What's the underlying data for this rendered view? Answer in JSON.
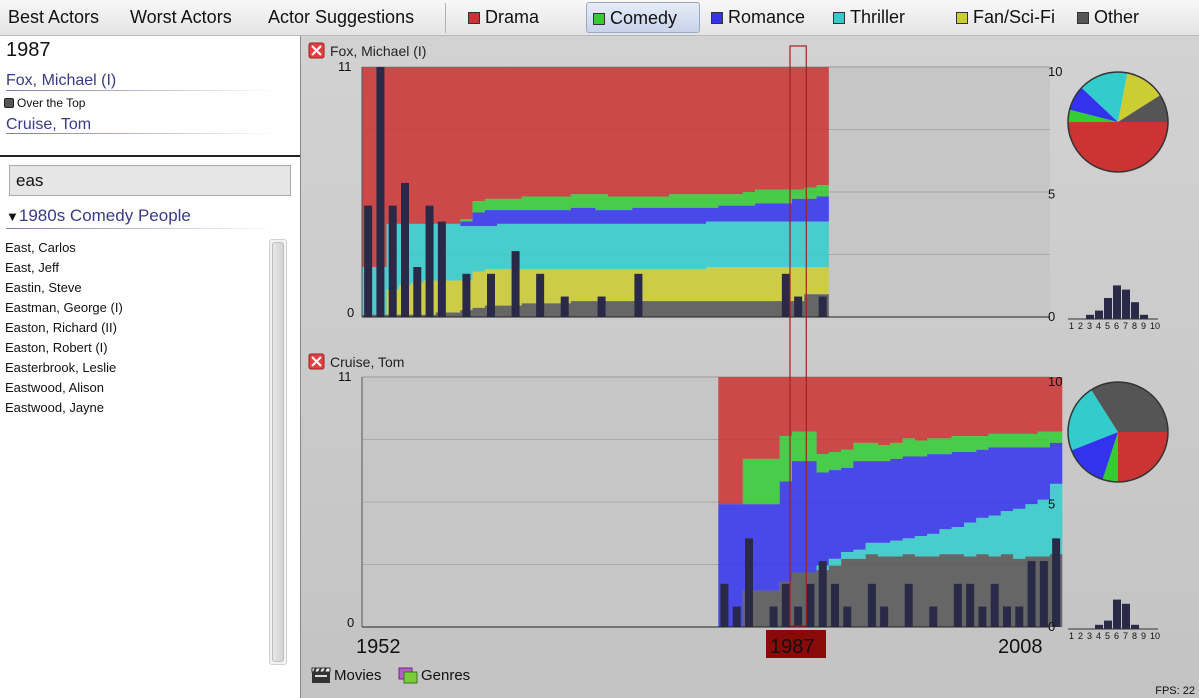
{
  "nav": {
    "tabs": [
      {
        "label": "Best Actors"
      },
      {
        "label": "Worst Actors"
      },
      {
        "label": "Actor Suggestions"
      }
    ]
  },
  "genres": [
    {
      "label": "Drama",
      "color": "#cc3333"
    },
    {
      "label": "Comedy",
      "color": "#33cc33",
      "active": true
    },
    {
      "label": "Romance",
      "color": "#3333ee"
    },
    {
      "label": "Thriller",
      "color": "#33cccc"
    },
    {
      "label": "Fan/Sci-Fi",
      "color": "#cccc33"
    },
    {
      "label": "Other",
      "color": "#555555"
    }
  ],
  "sidebar": {
    "year": "1987",
    "selected_actors": [
      {
        "name": "Fox, Michael (I)"
      },
      {
        "name": "Cruise, Tom"
      }
    ],
    "movie": "Over the Top",
    "search": {
      "value": "eas"
    },
    "group": {
      "label": "1980s Comedy People",
      "expander": "▼"
    },
    "people": [
      "East, Carlos",
      "East, Jeff",
      "Eastin, Steve",
      "Eastman, George (I)",
      "Easton, Richard (II)",
      "Easton, Robert (I)",
      "Easterbrook, Leslie",
      "Eastwood, Alison",
      "Eastwood, Jayne"
    ]
  },
  "timeline": {
    "start_label": "1952",
    "end_label": "2008",
    "selected_label": "1987"
  },
  "bottom": {
    "movies_label": "Movies",
    "genres_label": "Genres",
    "fps": "FPS: 22"
  },
  "chart_data": [
    {
      "type": "area",
      "title": "Fox, Michael (I)",
      "note": "stacked genre share over career, with per-year rating bars; 1 unit = 1 rating point",
      "ylim": [
        0,
        11
      ],
      "right_ticks": [
        "10",
        "5",
        "0"
      ],
      "left_ticks": [
        "11",
        "0"
      ],
      "x_start_year": 1952,
      "x_end_year": 2008,
      "stack_order": [
        "Other",
        "Fan/Sci-Fi",
        "Thriller",
        "Romance",
        "Comedy",
        "Drama"
      ],
      "stack_years": [
        1952,
        1953,
        1954,
        1955,
        1956,
        1957,
        1958,
        1959,
        1960,
        1961,
        1962,
        1963,
        1964,
        1965,
        1966,
        1967,
        1968,
        1969,
        1970,
        1971,
        1972,
        1973,
        1974,
        1975,
        1976,
        1977,
        1978,
        1979,
        1980,
        1981,
        1982,
        1983,
        1984,
        1985,
        1986,
        1987,
        1988,
        1989
      ],
      "stack_boundaries": {
        "Other": [
          0.1,
          0.1,
          0.1,
          0.1,
          0.1,
          0.1,
          0.2,
          0.2,
          0.3,
          0.4,
          0.5,
          0.5,
          0.5,
          0.6,
          0.6,
          0.6,
          0.6,
          0.7,
          0.7,
          0.7,
          0.7,
          0.7,
          0.7,
          0.7,
          0.7,
          0.7,
          0.7,
          0.7,
          0.7,
          0.7,
          0.7,
          0.7,
          0.7,
          0.7,
          0.7,
          0.7,
          1.0,
          1.0
        ],
        "Fan/Sci-Fi": [
          0.1,
          0.1,
          1.2,
          1.4,
          1.5,
          1.6,
          1.6,
          1.6,
          1.6,
          2.0,
          2.1,
          2.1,
          2.1,
          2.1,
          2.1,
          2.1,
          2.1,
          2.1,
          2.1,
          2.1,
          2.1,
          2.1,
          2.1,
          2.1,
          2.1,
          2.1,
          2.1,
          2.1,
          2.2,
          2.2,
          2.2,
          2.2,
          2.2,
          2.2,
          2.2,
          2.2,
          2.2,
          2.2
        ],
        "Thriller": [
          2.2,
          2.2,
          4.1,
          4.1,
          4.1,
          4.1,
          4.1,
          4.1,
          4.0,
          4.0,
          4.0,
          4.1,
          4.1,
          4.1,
          4.1,
          4.1,
          4.1,
          4.1,
          4.1,
          4.1,
          4.1,
          4.1,
          4.1,
          4.1,
          4.1,
          4.1,
          4.1,
          4.1,
          4.2,
          4.2,
          4.2,
          4.2,
          4.2,
          4.2,
          4.2,
          4.2,
          4.2,
          4.2
        ],
        "Romance": [
          2.2,
          2.2,
          4.1,
          4.1,
          4.1,
          4.1,
          4.1,
          4.1,
          4.2,
          4.6,
          4.7,
          4.7,
          4.7,
          4.7,
          4.7,
          4.7,
          4.7,
          4.8,
          4.8,
          4.7,
          4.7,
          4.7,
          4.8,
          4.8,
          4.8,
          4.8,
          4.8,
          4.8,
          4.8,
          4.9,
          4.9,
          4.9,
          5.0,
          5.0,
          5.0,
          5.2,
          5.2,
          5.3
        ],
        "Comedy": [
          2.2,
          2.2,
          4.1,
          4.1,
          4.1,
          4.1,
          4.1,
          4.1,
          4.3,
          5.1,
          5.2,
          5.2,
          5.2,
          5.3,
          5.3,
          5.3,
          5.3,
          5.4,
          5.4,
          5.4,
          5.3,
          5.3,
          5.3,
          5.3,
          5.3,
          5.4,
          5.4,
          5.4,
          5.4,
          5.4,
          5.4,
          5.5,
          5.6,
          5.6,
          5.6,
          5.6,
          5.7,
          5.8
        ],
        "Drama": [
          11,
          11,
          11,
          11,
          11,
          11,
          11,
          11,
          11,
          11,
          11,
          11,
          11,
          11,
          11,
          11,
          11,
          11,
          11,
          11,
          11,
          11,
          11,
          11,
          11,
          11,
          11,
          11,
          11,
          11,
          11,
          11,
          11,
          11,
          11,
          11,
          11,
          11
        ]
      },
      "rating_bars": [
        {
          "year": 1952,
          "value": 4.9
        },
        {
          "year": 1953,
          "value": 11.0
        },
        {
          "year": 1954,
          "value": 4.9
        },
        {
          "year": 1955,
          "value": 5.9
        },
        {
          "year": 1956,
          "value": 2.2
        },
        {
          "year": 1957,
          "value": 4.9
        },
        {
          "year": 1958,
          "value": 4.2
        },
        {
          "year": 1960,
          "value": 1.9
        },
        {
          "year": 1962,
          "value": 1.9
        },
        {
          "year": 1964,
          "value": 2.9
        },
        {
          "year": 1966,
          "value": 1.9
        },
        {
          "year": 1968,
          "value": 0.9
        },
        {
          "year": 1971,
          "value": 0.9
        },
        {
          "year": 1974,
          "value": 1.9
        },
        {
          "year": 1986,
          "value": 1.9
        },
        {
          "year": 1987,
          "value": 0.9
        },
        {
          "year": 1989,
          "value": 0.9
        }
      ],
      "pie": [
        {
          "genre": "Drama",
          "value": 50
        },
        {
          "genre": "Comedy",
          "value": 4
        },
        {
          "genre": "Romance",
          "value": 8
        },
        {
          "genre": "Thriller",
          "value": 16
        },
        {
          "genre": "Fan/Sci-Fi",
          "value": 13
        },
        {
          "genre": "Other",
          "value": 9
        }
      ],
      "histogram": {
        "labels": [
          "1",
          "2",
          "3",
          "4",
          "5",
          "6",
          "7",
          "8",
          "9",
          "10"
        ],
        "values": [
          0,
          0,
          1,
          2,
          5,
          8,
          7,
          4,
          1,
          0
        ]
      }
    },
    {
      "type": "area",
      "title": "Cruise, Tom",
      "ylim": [
        0,
        11
      ],
      "right_ticks": [
        "10",
        "5",
        "0"
      ],
      "left_ticks": [
        "11",
        "0"
      ],
      "x_start_year": 1952,
      "x_end_year": 2008,
      "stack_order": [
        "Other",
        "Fan/Sci-Fi",
        "Thriller",
        "Romance",
        "Comedy",
        "Drama"
      ],
      "stack_years": [
        1981,
        1982,
        1983,
        1984,
        1985,
        1986,
        1987,
        1988,
        1989,
        1990,
        1991,
        1992,
        1993,
        1994,
        1995,
        1996,
        1997,
        1998,
        1999,
        2000,
        2001,
        2002,
        2003,
        2004,
        2005,
        2006,
        2007,
        2008
      ],
      "stack_boundaries": {
        "Other": [
          0,
          0,
          1.6,
          1.6,
          1.6,
          2.0,
          2.4,
          2.4,
          2.5,
          2.7,
          3.0,
          3.0,
          3.2,
          3.1,
          3.1,
          3.2,
          3.1,
          3.1,
          3.2,
          3.2,
          3.1,
          3.2,
          3.1,
          3.2,
          3.0,
          3.1,
          3.1,
          3.2
        ],
        "Fan/Sci-Fi": [
          0,
          0,
          1.6,
          1.6,
          1.6,
          2.0,
          2.4,
          2.4,
          2.5,
          2.7,
          3.0,
          3.0,
          3.2,
          3.1,
          3.1,
          3.2,
          3.1,
          3.1,
          3.2,
          3.2,
          3.1,
          3.2,
          3.1,
          3.2,
          3.0,
          3.1,
          3.1,
          3.2
        ],
        "Thriller": [
          0,
          0,
          1.6,
          1.6,
          1.6,
          2.0,
          2.4,
          2.4,
          2.7,
          3.0,
          3.3,
          3.4,
          3.7,
          3.7,
          3.8,
          3.9,
          4.0,
          4.1,
          4.3,
          4.4,
          4.6,
          4.8,
          4.9,
          5.1,
          5.2,
          5.4,
          5.6,
          6.3
        ],
        "Romance": [
          5.4,
          5.4,
          5.4,
          5.4,
          5.4,
          6.4,
          7.3,
          7.3,
          6.8,
          6.9,
          7.0,
          7.3,
          7.3,
          7.3,
          7.4,
          7.5,
          7.5,
          7.6,
          7.6,
          7.7,
          7.7,
          7.8,
          7.9,
          7.9,
          7.9,
          7.9,
          7.9,
          8.1
        ],
        "Comedy": [
          5.4,
          5.4,
          7.4,
          7.4,
          7.4,
          8.4,
          8.6,
          8.6,
          7.6,
          7.7,
          7.8,
          8.1,
          8.1,
          8.0,
          8.1,
          8.3,
          8.2,
          8.3,
          8.3,
          8.4,
          8.4,
          8.4,
          8.5,
          8.5,
          8.5,
          8.5,
          8.6,
          8.6
        ],
        "Drama": [
          11,
          11,
          11,
          11,
          11,
          11,
          11,
          11,
          11,
          11,
          11,
          11,
          11,
          11,
          11,
          11,
          11,
          11,
          11,
          11,
          11,
          11,
          11,
          11,
          11,
          11,
          11,
          11
        ]
      },
      "rating_bars": [
        {
          "year": 1981,
          "value": 1.9
        },
        {
          "year": 1982,
          "value": 0.9
        },
        {
          "year": 1983,
          "value": 3.9
        },
        {
          "year": 1985,
          "value": 0.9
        },
        {
          "year": 1986,
          "value": 1.9
        },
        {
          "year": 1987,
          "value": 0.9
        },
        {
          "year": 1988,
          "value": 1.9
        },
        {
          "year": 1989,
          "value": 2.9
        },
        {
          "year": 1990,
          "value": 1.9
        },
        {
          "year": 1991,
          "value": 0.9
        },
        {
          "year": 1993,
          "value": 1.9
        },
        {
          "year": 1994,
          "value": 0.9
        },
        {
          "year": 1996,
          "value": 1.9
        },
        {
          "year": 1998,
          "value": 0.9
        },
        {
          "year": 2000,
          "value": 1.9
        },
        {
          "year": 2001,
          "value": 1.9
        },
        {
          "year": 2002,
          "value": 0.9
        },
        {
          "year": 2003,
          "value": 1.9
        },
        {
          "year": 2004,
          "value": 0.9
        },
        {
          "year": 2005,
          "value": 0.9
        },
        {
          "year": 2006,
          "value": 2.9
        },
        {
          "year": 2007,
          "value": 2.9
        },
        {
          "year": 2008,
          "value": 3.9
        }
      ],
      "pie": [
        {
          "genre": "Drama",
          "value": 25
        },
        {
          "genre": "Comedy",
          "value": 5
        },
        {
          "genre": "Romance",
          "value": 14
        },
        {
          "genre": "Thriller",
          "value": 22
        },
        {
          "genre": "Other",
          "value": 34
        }
      ],
      "histogram": {
        "labels": [
          "1",
          "2",
          "3",
          "4",
          "5",
          "6",
          "7",
          "8",
          "9",
          "10"
        ],
        "values": [
          0,
          0,
          0,
          1,
          2,
          7,
          6,
          1,
          0,
          0
        ]
      }
    }
  ]
}
